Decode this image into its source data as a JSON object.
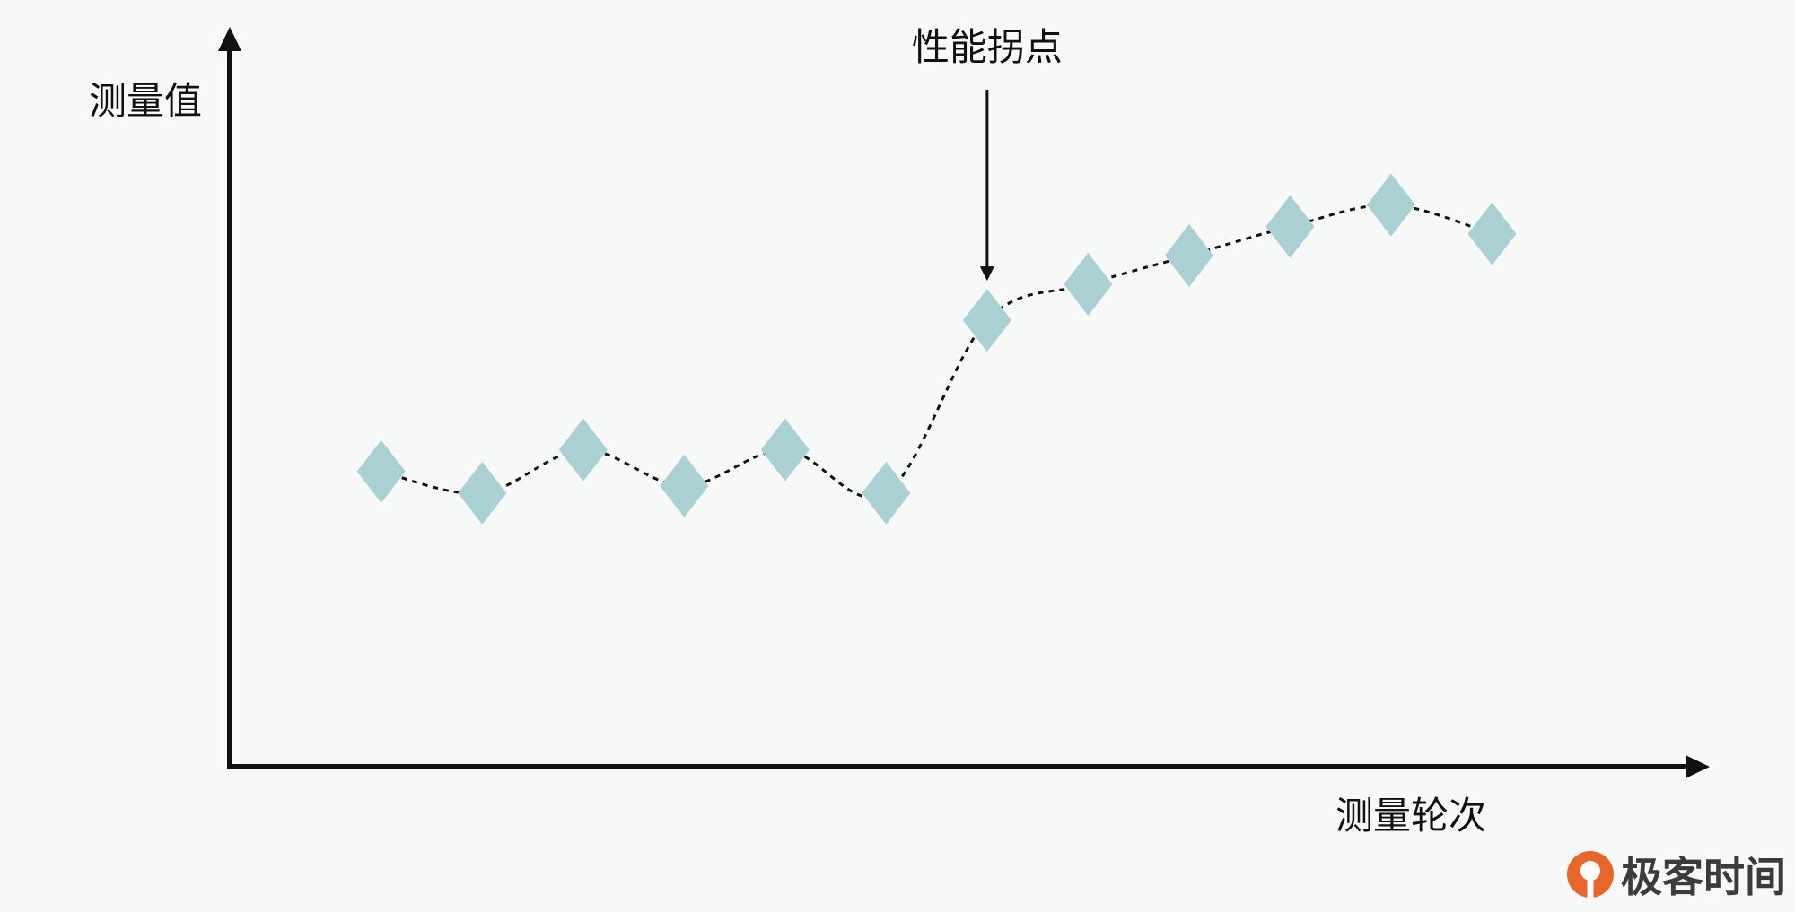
{
  "chart_data": {
    "type": "line",
    "ylabel": "测量值",
    "xlabel": "测量轮次",
    "x": [
      1,
      2,
      3,
      4,
      5,
      6,
      7,
      8,
      9,
      10,
      11,
      12
    ],
    "series": [
      {
        "values": [
          41,
          38,
          44,
          39,
          44,
          38,
          62,
          67,
          71,
          75,
          78,
          74
        ],
        "marker": "diamond",
        "line_style": "dotted",
        "marker_color": "#a9d0d2",
        "line_color": "#111111"
      }
    ],
    "xlim": [
      -0.5,
      15
    ],
    "ylim": [
      0,
      100
    ],
    "grid": false,
    "annotations": [
      {
        "text": "性能拐点",
        "x": 7,
        "arrow": "down"
      }
    ]
  },
  "logo": {
    "text": "极客时间",
    "color": "#e8662a"
  }
}
